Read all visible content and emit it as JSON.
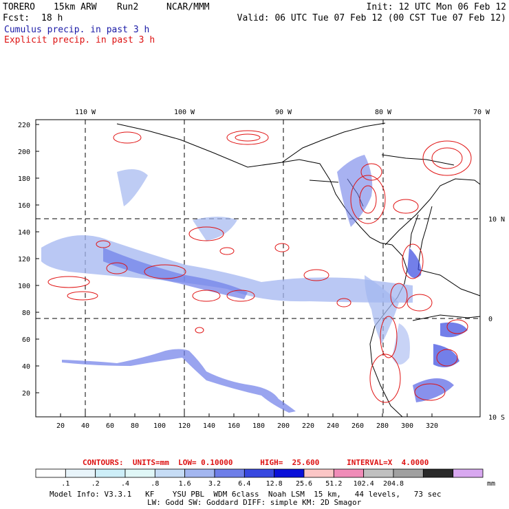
{
  "header": {
    "model": "TORERO",
    "resolution": "15km ARW",
    "run": "Run2",
    "org": "NCAR/MMM",
    "init": "Init: 12 UTC Mon 06 Feb 12",
    "fcst_label": "Fcst:",
    "fcst_value": "18 h",
    "valid": "Valid: 06 UTC Tue 07 Feb 12 (00 CST Tue 07 Feb 12)",
    "legend_cumulus": "Cumulus precip. in past 3 h",
    "legend_explicit": "Explicit precip. in past 3 h"
  },
  "map": {
    "lon_labels": [
      "110 W",
      "100 W",
      "90 W",
      "80 W",
      "70 W"
    ],
    "lat_labels": [
      "10 N",
      "0",
      "10 S"
    ],
    "y_ticks": [
      "220",
      "200",
      "180",
      "160",
      "140",
      "120",
      "100",
      "80",
      "60",
      "40",
      "20"
    ],
    "x_ticks": [
      "20",
      "40",
      "60",
      "80",
      "100",
      "120",
      "140",
      "160",
      "180",
      "200",
      "220",
      "240",
      "260",
      "280",
      "300",
      "320"
    ]
  },
  "contour_info": "CONTOURS:  UNITS=mm  LOW= 0.10000      HIGH=  25.600      INTERVAL=X  4.0000",
  "colorbar": {
    "labels": [
      ".1",
      ".2",
      ".4",
      ".8",
      "1.6",
      "3.2",
      "6.4",
      "12.8",
      "25.6",
      "51.2",
      "102.4",
      "204.8"
    ],
    "unit": "mm",
    "colors": [
      "#ffffff",
      "#e8f4fa",
      "#cdeef8",
      "#e0f7f7",
      "#c6dcf5",
      "#a3b6f0",
      "#6e7ee8",
      "#3848e0",
      "#0a10d8",
      "#fbc6c6",
      "#f08cb8",
      "#c0c0c0",
      "#a0a0a0",
      "#2a2a2a",
      "#d8a8f0"
    ]
  },
  "model_info": {
    "line1": "Model Info: V3.3.1   KF    YSU PBL  WDM 6class  Noah LSM  15 km,   44 levels,   73 sec",
    "line2": "LW: Godd SW: Goddard DIFF: simple KM: 2D Smagor"
  }
}
